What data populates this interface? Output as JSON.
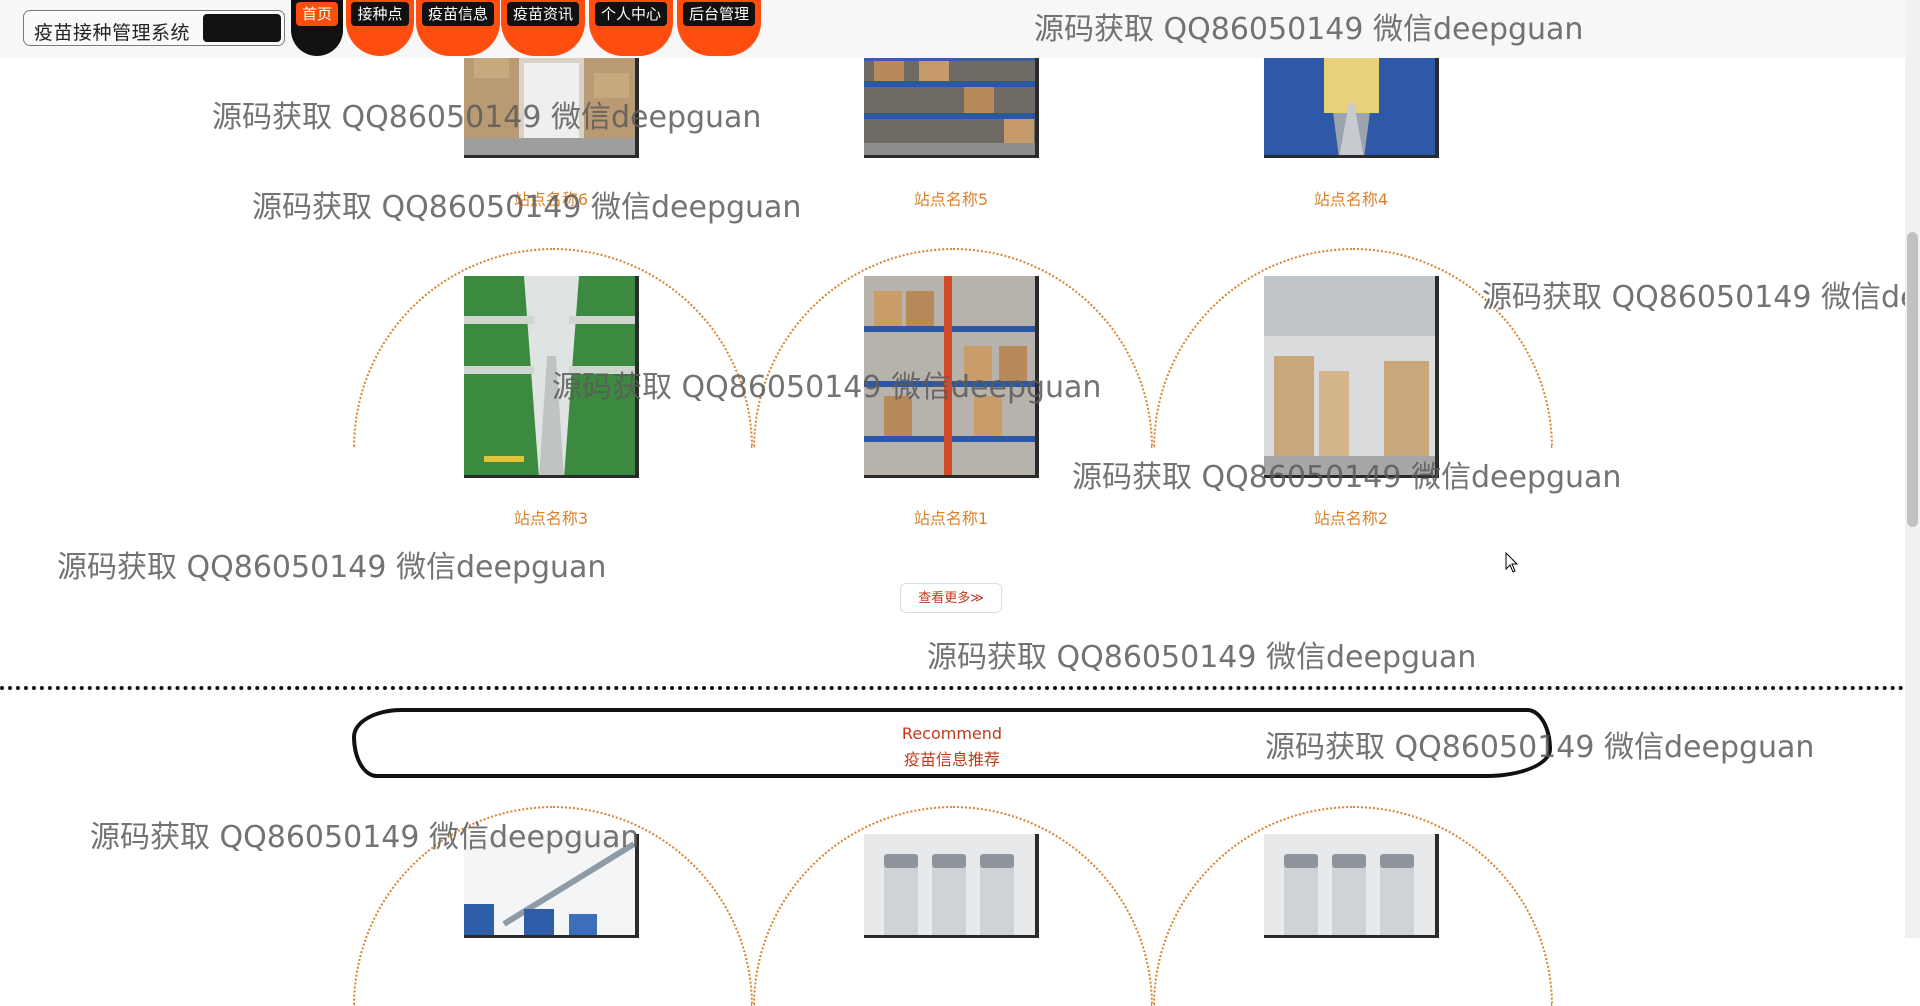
{
  "nav": {
    "brand": "疫苗接种管理系统",
    "items": [
      "首页",
      "接种点",
      "疫苗信息",
      "疫苗资讯",
      "个人中心",
      "后台管理"
    ]
  },
  "sites": {
    "row1": [
      "站点名称6",
      "站点名称5",
      "站点名称4"
    ],
    "row2": [
      "站点名称3",
      "站点名称1",
      "站点名称2"
    ],
    "more_label": "查看更多≫"
  },
  "recommend": {
    "en": "Recommend",
    "cn": "疫苗信息推荐"
  },
  "watermark": "源码获取 QQ86050149 微信deepguan",
  "colors": {
    "accent": "#ff4d0f",
    "label": "#d9822b"
  }
}
